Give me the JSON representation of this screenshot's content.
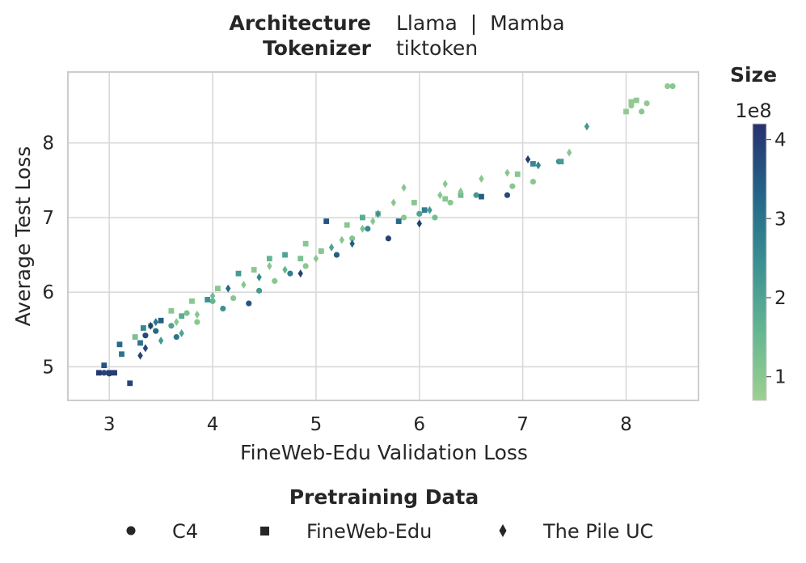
{
  "header": {
    "architecture_label": "Architecture",
    "architecture_value": "Llama  |  Mamba",
    "tokenizer_label": "Tokenizer",
    "tokenizer_value": "tiktoken"
  },
  "colorbar": {
    "title": "Size",
    "multiplier": "1e8",
    "range": [
      0.7,
      4.2
    ],
    "ticks": [
      1,
      2,
      3,
      4
    ],
    "colors": [
      "#9dd08f",
      "#64b692",
      "#3a8f92",
      "#236488",
      "#28306e"
    ]
  },
  "legend": {
    "title": "Pretraining Data",
    "items": [
      {
        "label": "C4",
        "marker": "circle"
      },
      {
        "label": "FineWeb-Edu",
        "marker": "square"
      },
      {
        "label": "The Pile UC",
        "marker": "diamond"
      }
    ]
  },
  "chart_data": {
    "type": "scatter",
    "xlabel": "FineWeb-Edu Validation Loss",
    "ylabel": "Average Test Loss",
    "xlim": [
      2.6,
      8.7
    ],
    "ylim": [
      4.55,
      8.95
    ],
    "xticks": [
      3,
      4,
      5,
      6,
      7,
      8
    ],
    "yticks": [
      5,
      6,
      7,
      8
    ],
    "grid": true,
    "series": [
      {
        "name": "C4",
        "marker": "circle",
        "points": [
          [
            2.95,
            4.92,
            3.9
          ],
          [
            3.0,
            4.91,
            4.0
          ],
          [
            3.35,
            5.42,
            3.8
          ],
          [
            3.45,
            5.48,
            3.2
          ],
          [
            3.6,
            5.55,
            2.0
          ],
          [
            3.65,
            5.4,
            3.0
          ],
          [
            3.75,
            5.72,
            1.2
          ],
          [
            3.85,
            5.6,
            1.0
          ],
          [
            4.0,
            5.88,
            1.6
          ],
          [
            4.1,
            5.78,
            2.4
          ],
          [
            4.2,
            5.92,
            1.0
          ],
          [
            4.35,
            5.85,
            3.6
          ],
          [
            4.45,
            6.02,
            2.2
          ],
          [
            4.6,
            6.15,
            1.0
          ],
          [
            4.75,
            6.25,
            2.8
          ],
          [
            4.9,
            6.35,
            1.0
          ],
          [
            5.05,
            6.55,
            1.8
          ],
          [
            5.2,
            6.5,
            3.4
          ],
          [
            5.35,
            6.72,
            1.1
          ],
          [
            5.5,
            6.85,
            2.6
          ],
          [
            5.7,
            6.72,
            3.9
          ],
          [
            5.85,
            7.0,
            1.0
          ],
          [
            6.0,
            7.05,
            2.0
          ],
          [
            6.15,
            7.0,
            1.3
          ],
          [
            6.3,
            7.2,
            1.0
          ],
          [
            6.55,
            7.3,
            2.2
          ],
          [
            6.85,
            7.3,
            3.8
          ],
          [
            6.9,
            7.42,
            1.0
          ],
          [
            7.1,
            7.48,
            1.0
          ],
          [
            7.35,
            7.75,
            2.4
          ],
          [
            8.05,
            8.5,
            0.9
          ],
          [
            8.15,
            8.42,
            1.0
          ],
          [
            8.2,
            8.53,
            0.9
          ],
          [
            8.4,
            8.76,
            0.9
          ],
          [
            8.45,
            8.76,
            1.0
          ]
        ]
      },
      {
        "name": "FineWeb-Edu",
        "marker": "square",
        "points": [
          [
            2.9,
            4.92,
            4.1
          ],
          [
            2.95,
            5.02,
            3.6
          ],
          [
            3.0,
            4.92,
            4.0
          ],
          [
            3.05,
            4.92,
            4.0
          ],
          [
            3.1,
            5.3,
            3.2
          ],
          [
            3.12,
            5.17,
            3.0
          ],
          [
            3.2,
            4.78,
            3.9
          ],
          [
            3.25,
            5.4,
            1.2
          ],
          [
            3.3,
            5.32,
            3.0
          ],
          [
            3.33,
            5.52,
            2.6
          ],
          [
            3.4,
            5.55,
            1.0
          ],
          [
            3.5,
            5.62,
            3.4
          ],
          [
            3.6,
            5.75,
            1.0
          ],
          [
            3.7,
            5.68,
            1.8
          ],
          [
            3.8,
            5.88,
            1.0
          ],
          [
            3.95,
            5.9,
            2.4
          ],
          [
            4.05,
            6.05,
            1.0
          ],
          [
            4.25,
            6.25,
            2.2
          ],
          [
            4.4,
            6.3,
            1.0
          ],
          [
            4.55,
            6.45,
            1.6
          ],
          [
            4.7,
            6.5,
            2.0
          ],
          [
            4.85,
            6.45,
            1.2
          ],
          [
            4.9,
            6.65,
            1.0
          ],
          [
            5.05,
            6.55,
            1.0
          ],
          [
            5.1,
            6.95,
            3.6
          ],
          [
            5.3,
            6.9,
            1.0
          ],
          [
            5.45,
            7.0,
            1.8
          ],
          [
            5.6,
            7.05,
            1.0
          ],
          [
            5.8,
            6.95,
            3.2
          ],
          [
            5.95,
            7.2,
            1.0
          ],
          [
            6.05,
            7.1,
            2.8
          ],
          [
            6.25,
            7.25,
            1.0
          ],
          [
            6.4,
            7.3,
            1.4
          ],
          [
            6.6,
            7.28,
            3.4
          ],
          [
            6.95,
            7.58,
            1.0
          ],
          [
            7.1,
            7.72,
            2.6
          ],
          [
            7.37,
            7.75,
            2.2
          ],
          [
            8.0,
            8.42,
            0.9
          ],
          [
            8.05,
            8.55,
            0.9
          ],
          [
            8.1,
            8.57,
            0.9
          ]
        ]
      },
      {
        "name": "The Pile UC",
        "marker": "diamond",
        "points": [
          [
            3.3,
            5.15,
            3.9
          ],
          [
            3.35,
            5.25,
            3.8
          ],
          [
            3.4,
            5.55,
            4.0
          ],
          [
            3.45,
            5.6,
            3.0
          ],
          [
            3.5,
            5.35,
            2.2
          ],
          [
            3.65,
            5.6,
            1.0
          ],
          [
            3.7,
            5.45,
            2.0
          ],
          [
            3.85,
            5.7,
            1.0
          ],
          [
            4.0,
            5.95,
            1.4
          ],
          [
            4.15,
            6.05,
            3.2
          ],
          [
            4.3,
            6.1,
            1.0
          ],
          [
            4.45,
            6.2,
            2.6
          ],
          [
            4.55,
            6.35,
            1.0
          ],
          [
            4.7,
            6.3,
            1.6
          ],
          [
            4.85,
            6.25,
            3.9
          ],
          [
            5.0,
            6.45,
            1.0
          ],
          [
            5.15,
            6.6,
            2.0
          ],
          [
            5.25,
            6.7,
            1.0
          ],
          [
            5.35,
            6.65,
            3.4
          ],
          [
            5.45,
            6.85,
            1.2
          ],
          [
            5.55,
            6.95,
            1.0
          ],
          [
            5.6,
            7.05,
            2.4
          ],
          [
            5.75,
            7.2,
            1.0
          ],
          [
            5.85,
            7.4,
            1.0
          ],
          [
            6.0,
            6.92,
            4.0
          ],
          [
            6.1,
            7.1,
            2.2
          ],
          [
            6.2,
            7.3,
            1.0
          ],
          [
            6.25,
            7.45,
            1.0
          ],
          [
            6.4,
            7.35,
            1.0
          ],
          [
            6.6,
            7.52,
            1.0
          ],
          [
            6.85,
            7.6,
            1.0
          ],
          [
            7.05,
            7.78,
            4.0
          ],
          [
            7.15,
            7.7,
            2.6
          ],
          [
            7.45,
            7.87,
            1.0
          ],
          [
            7.62,
            8.22,
            2.2
          ]
        ]
      }
    ]
  }
}
